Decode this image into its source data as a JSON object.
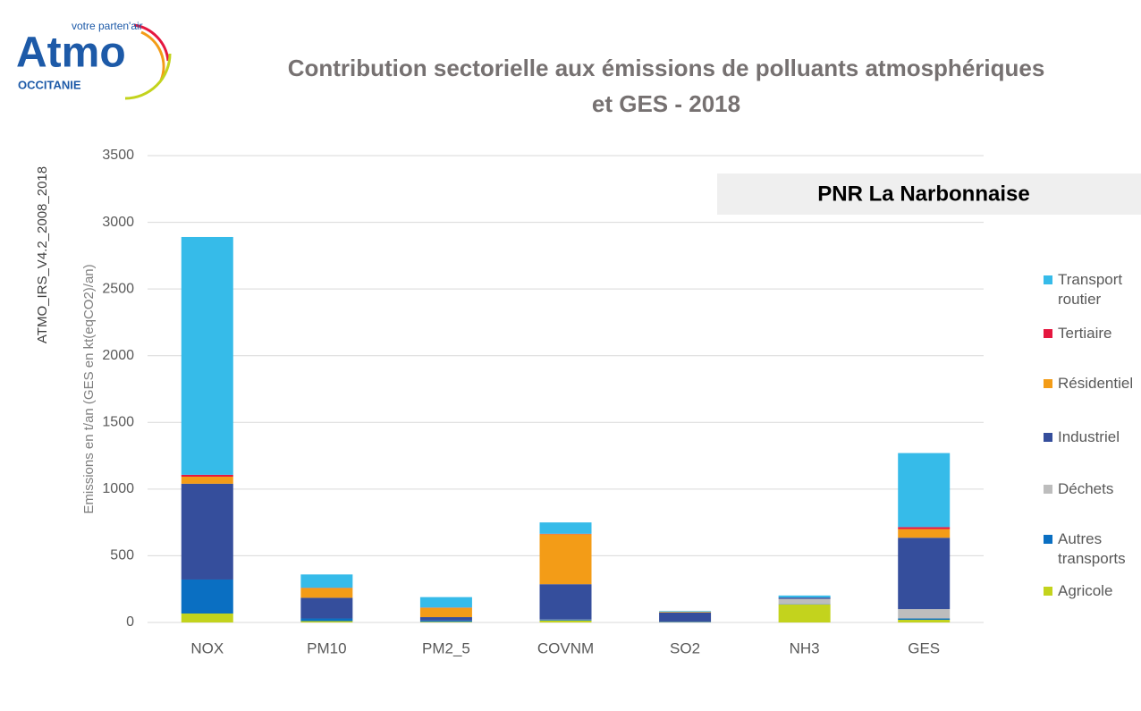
{
  "logo": {
    "tagline": "votre parten'air",
    "name": "Atmo",
    "region": "OCCITANIE"
  },
  "side_label": "ATMO_IRS_V4.2_2008_2018",
  "chart_data": {
    "type": "stacked_bar",
    "title": [
      "Contribution sectorielle aux émissions de polluants atmosphériques",
      "et GES  - 2018"
    ],
    "annotation": "PNR La Narbonnaise",
    "y_label": "Emissions en t/an (GES en kt(eqCO2)/an)",
    "categories": [
      "NOX",
      "PM10",
      "PM2_5",
      "COVNM",
      "SO2",
      "NH3",
      "GES"
    ],
    "ylim": [
      0,
      3500
    ],
    "yticks": [
      0,
      500,
      1000,
      1500,
      2000,
      2500,
      3000,
      3500
    ],
    "grid": true,
    "legend": "right",
    "series": [
      {
        "name": "Agricole",
        "color": "#c3d31d",
        "values": [
          67,
          10,
          5,
          15,
          2,
          135,
          20
        ]
      },
      {
        "name": "Autres transports",
        "color": "#0a6fc2",
        "values": [
          255,
          20,
          10,
          5,
          3,
          2,
          10
        ]
      },
      {
        "name": "Déchets",
        "color": "#bdbdbd",
        "values": [
          0,
          0,
          0,
          2,
          0,
          40,
          70
        ]
      },
      {
        "name": "Industriel",
        "color": "#354e9c",
        "values": [
          718,
          155,
          25,
          265,
          70,
          10,
          535
        ]
      },
      {
        "name": "Résidentiel",
        "color": "#f39c17",
        "values": [
          53,
          73,
          70,
          375,
          5,
          0,
          65
        ]
      },
      {
        "name": "Tertiaire",
        "color": "#e5173f",
        "values": [
          14,
          2,
          2,
          3,
          0,
          0,
          15
        ]
      },
      {
        "name": "Transport routier",
        "color": "#36bbe9",
        "values": [
          1783,
          100,
          78,
          85,
          5,
          15,
          555
        ]
      }
    ]
  }
}
